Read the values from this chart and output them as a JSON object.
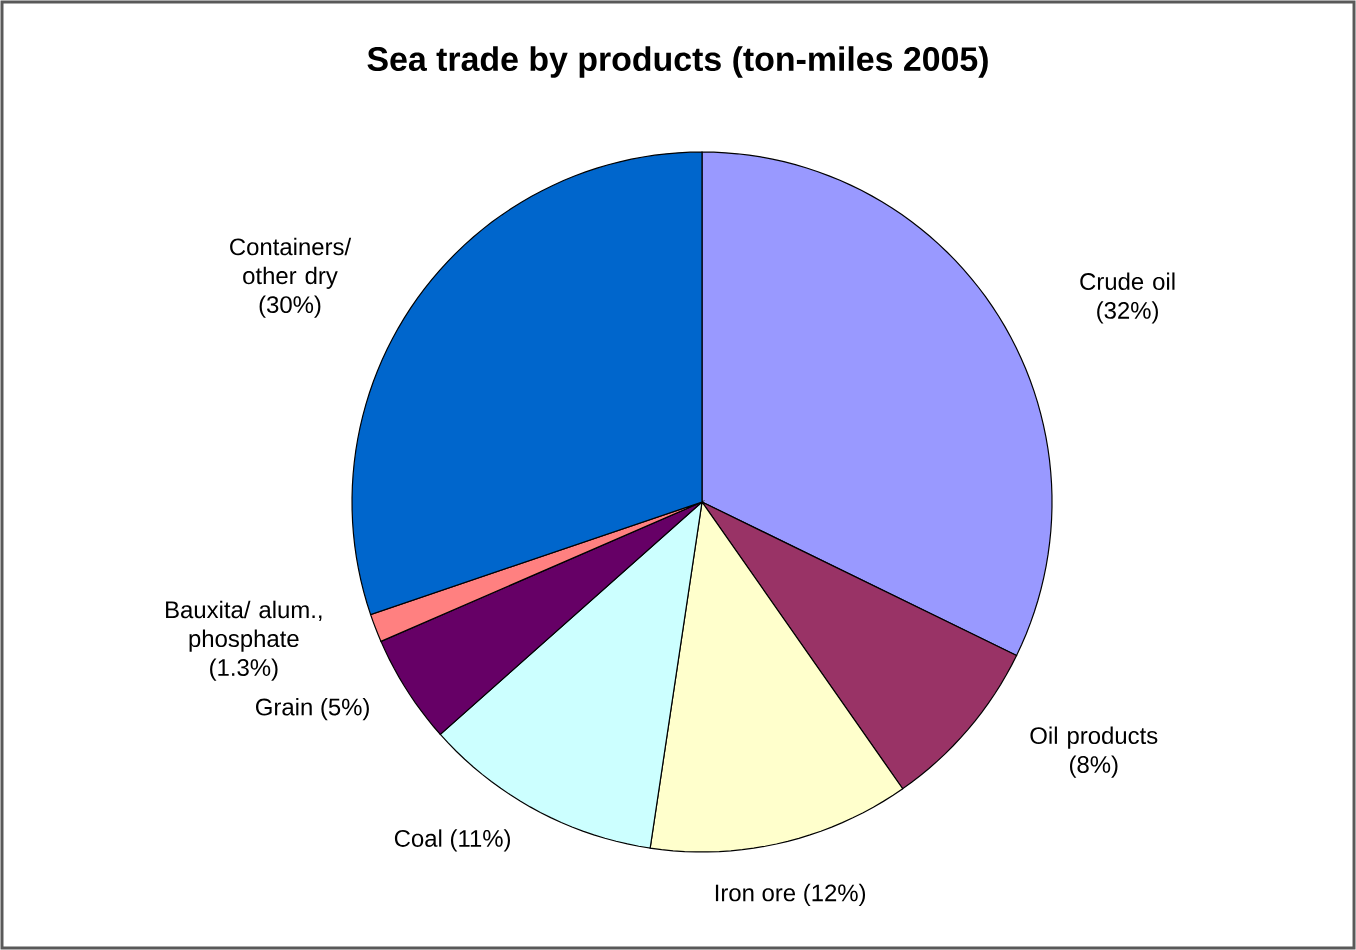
{
  "chart_data": {
    "type": "pie",
    "title": "Sea trade by products (ton-miles 2005)",
    "categories": [
      "Crude oil",
      "Oil products",
      "Iron ore",
      "Coal",
      "Grain",
      "Bauxita/ alum., phosphate",
      "Containers/ other dry"
    ],
    "values": [
      32,
      8,
      12,
      11,
      5,
      1.3,
      30
    ],
    "value_labels": [
      "(32%)",
      "(8%)",
      "(12%)",
      "(11%)",
      "(5%)",
      "(1.3%)",
      "(30%)"
    ],
    "colors": [
      "#9999ff",
      "#993366",
      "#ffffcc",
      "#ccffff",
      "#660066",
      "#ff8080",
      "#0066cc"
    ]
  }
}
